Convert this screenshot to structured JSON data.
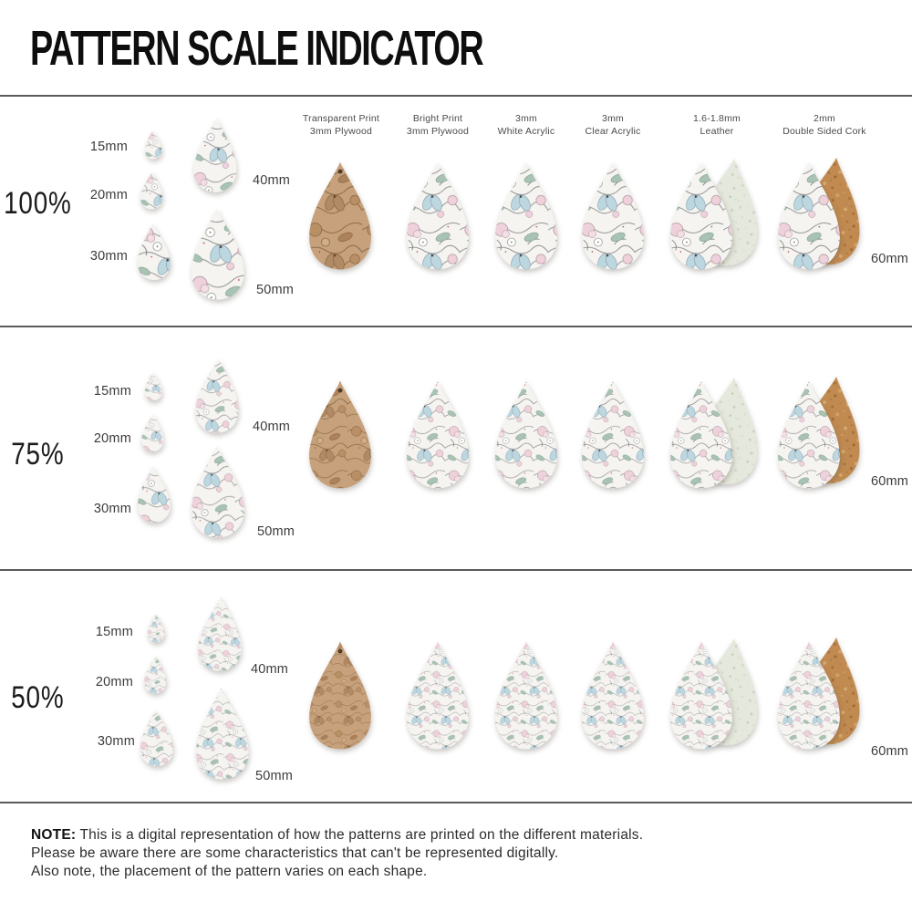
{
  "title": "PATTERN SCALE INDICATOR",
  "rows": [
    {
      "scale": "100%"
    },
    {
      "scale": "75%"
    },
    {
      "scale": "50%"
    }
  ],
  "size_labels": {
    "s15": "15mm",
    "s20": "20mm",
    "s30": "30mm",
    "s40": "40mm",
    "s50": "50mm",
    "s60": "60mm"
  },
  "materials": [
    {
      "line1": "Transparent Print",
      "line2": "3mm Plywood"
    },
    {
      "line1": "Bright Print",
      "line2": "3mm Plywood"
    },
    {
      "line1": "3mm",
      "line2": "White Acrylic"
    },
    {
      "line1": "3mm",
      "line2": "Clear Acrylic"
    },
    {
      "line1": "1.6-1.8mm",
      "line2": "Leather"
    },
    {
      "line1": "2mm",
      "line2": "Double Sided Cork"
    }
  ],
  "note": {
    "label": "NOTE:",
    "line1": "This is a digital representation of how the patterns are printed on the different materials.",
    "line2": "Please be aware there are some characteristics that can't be represented digitally.",
    "line3": "Also note, the placement of the pattern varies on each shape."
  },
  "pattern_scale_percents": [
    100,
    75,
    50
  ],
  "colors": {
    "pattern_pink": "#eed1db",
    "pattern_blue": "#bdd7e1",
    "pattern_green": "#a8c2b4",
    "pattern_line_grey": "#7b7b7b",
    "plywood_tan": "#c6a17b",
    "cork": "#c08a50",
    "leather": "#e5e8dc",
    "divider_grey": "#5a5a5c",
    "text_dark": "#2c2c2c"
  }
}
